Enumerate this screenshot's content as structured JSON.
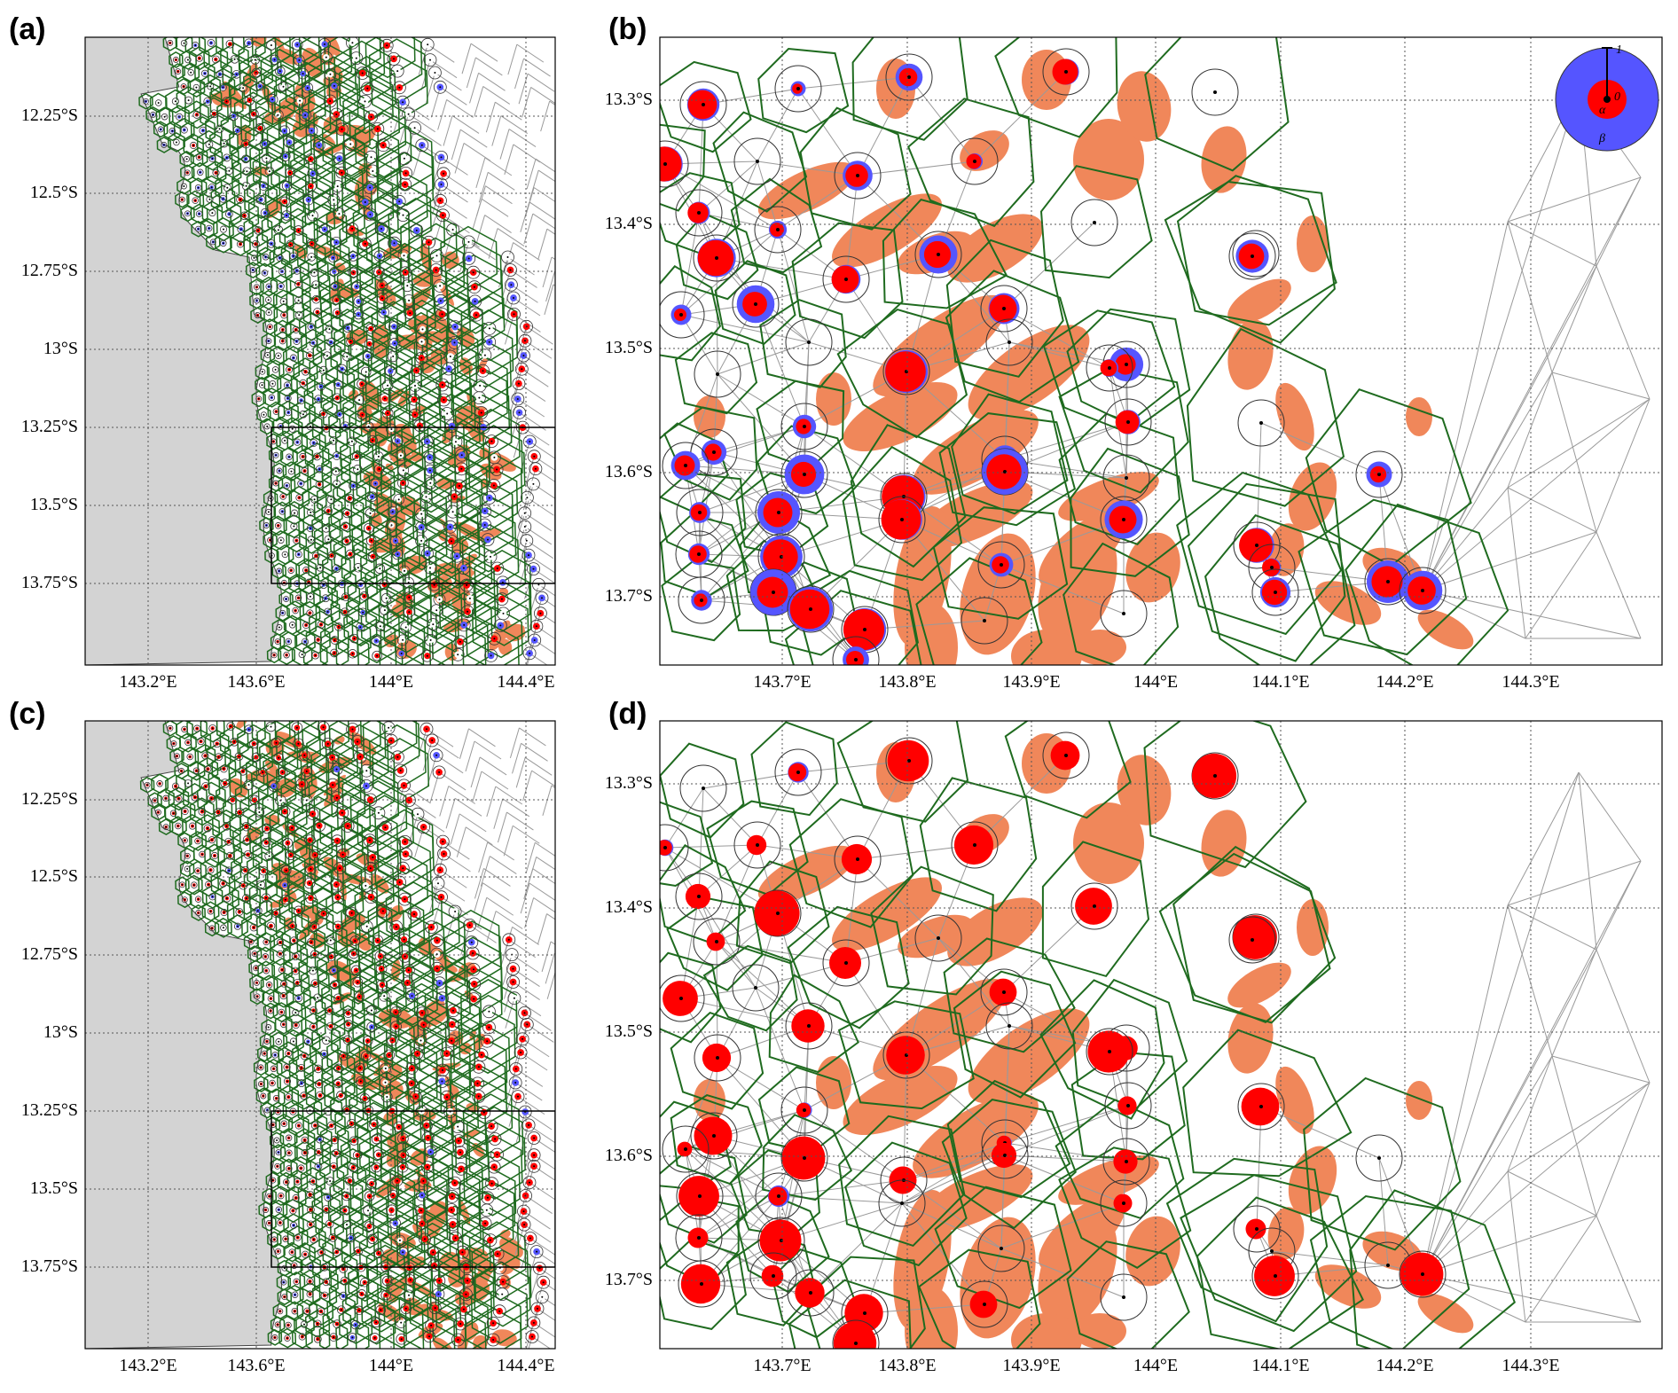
{
  "panels": [
    {
      "label": "(a)",
      "y_ticks": [
        "12.25°S",
        "12.5°S",
        "12.75°S",
        "13°S",
        "13.25°S",
        "13.5°S",
        "13.75°S"
      ],
      "x_ticks": [
        "143.2°E",
        "143.6°E",
        "144°E",
        "144.4°E"
      ]
    },
    {
      "label": "(b)",
      "y_ticks": [
        "13.3°S",
        "13.4°S",
        "13.5°S",
        "13.6°S",
        "13.7°S"
      ],
      "x_ticks": [
        "143.7°E",
        "143.8°E",
        "143.9°E",
        "144°E",
        "144.1°E",
        "144.2°E",
        "144.3°E"
      ],
      "legend": {
        "one_label": "1",
        "zero_label": "0",
        "alpha_label": "α",
        "beta_label": "β"
      }
    },
    {
      "label": "(c)",
      "y_ticks": [
        "12.25°S",
        "12.5°S",
        "12.75°S",
        "13°S",
        "13.25°S",
        "13.5°S",
        "13.75°S"
      ],
      "x_ticks": [
        "143.2°E",
        "143.6°E",
        "144°E",
        "144.4°E"
      ]
    },
    {
      "label": "(d)",
      "y_ticks": [
        "13.3°S",
        "13.4°S",
        "13.5°S",
        "13.6°S",
        "13.7°S"
      ],
      "x_ticks": [
        "143.7°E",
        "143.8°E",
        "143.9°E",
        "144°E",
        "144.1°E",
        "144.2°E",
        "144.3°E"
      ]
    }
  ],
  "colors": {
    "land": "#d3d3d3",
    "reef": "#f0875a",
    "voronoi": "#1f6b1f",
    "mesh": "#9a9a9a",
    "alpha": "#ff0000",
    "beta": "#5555ff",
    "grid": "#555555"
  }
}
